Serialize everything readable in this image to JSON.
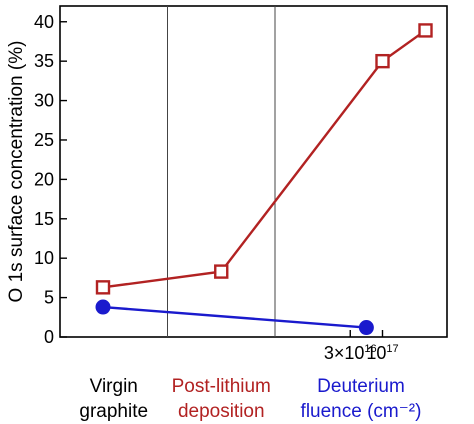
{
  "chart_data": {
    "type": "line",
    "title": "",
    "ylabel": "O 1s surface concentration (%)",
    "ylim": [
      0,
      42
    ],
    "yticks": [
      0,
      5,
      10,
      15,
      20,
      25,
      30,
      35,
      40
    ],
    "grid": false,
    "dividers": [
      1,
      2
    ],
    "xlim": [
      0,
      3.6
    ],
    "regions": [
      {
        "lines": [
          "Virgin",
          "graphite"
        ],
        "color": "#000000"
      },
      {
        "lines": [
          "Post-lithium",
          "deposition"
        ],
        "color": "#b22222"
      },
      {
        "lines": [
          "Deuterium",
          "fluence (cm⁻²)"
        ],
        "color": "#1a1acd"
      }
    ],
    "fluence_ticks": [
      {
        "x": 2.7,
        "label_base": "3×10",
        "label_exp": "16"
      },
      {
        "x": 3.0,
        "label_base": "10",
        "label_exp": "17"
      }
    ],
    "series": [
      {
        "marker": "open-square",
        "color": "#b22222",
        "points": [
          {
            "x": 0.4,
            "y": 6.3
          },
          {
            "x": 1.5,
            "y": 8.3
          },
          {
            "x": 3.0,
            "y": 35.0
          },
          {
            "x": 3.4,
            "y": 38.9
          }
        ]
      },
      {
        "marker": "filled-circle",
        "color": "#1a1acd",
        "points": [
          {
            "x": 0.4,
            "y": 3.8
          },
          {
            "x": 2.85,
            "y": 1.2
          }
        ]
      }
    ]
  }
}
